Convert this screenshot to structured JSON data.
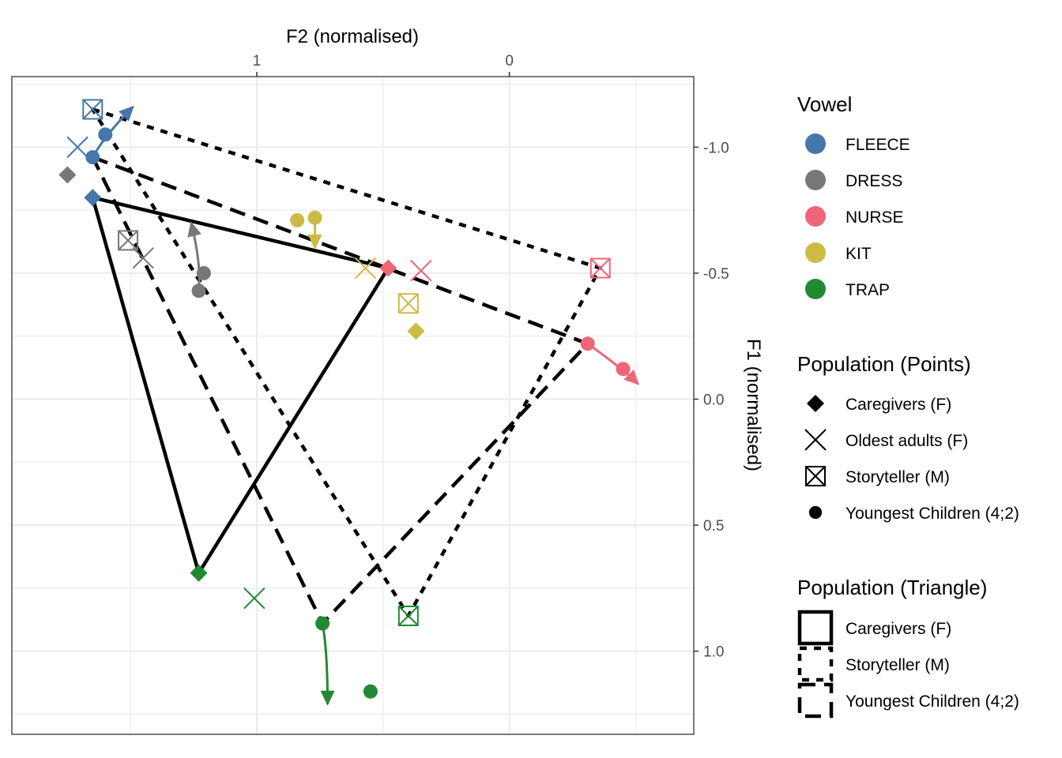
{
  "chart_data": {
    "type": "scatter",
    "title": "",
    "xlabel": "F2 (normalised)",
    "ylabel": "F1 (normalised)",
    "x_axis_position": "top",
    "y_axis_position": "right",
    "x_reversed": true,
    "y_reversed": true,
    "xlim": [
      1.97,
      -0.73
    ],
    "ylim": [
      -1.28,
      1.33
    ],
    "x_ticks": [
      {
        "value": 1,
        "label": "1"
      },
      {
        "value": 0,
        "label": "0"
      }
    ],
    "y_ticks": [
      {
        "value": -1.0,
        "label": "-1.0"
      },
      {
        "value": -0.5,
        "label": "-0.5"
      },
      {
        "value": 0.0,
        "label": "0.0"
      },
      {
        "value": 0.5,
        "label": "0.5"
      },
      {
        "value": 1.0,
        "label": "1.0"
      }
    ],
    "grid": true,
    "vowels": [
      {
        "name": "FLEECE",
        "color": "#4477AA"
      },
      {
        "name": "DRESS",
        "color": "#777777"
      },
      {
        "name": "NURSE",
        "color": "#EE6677"
      },
      {
        "name": "KIT",
        "color": "#CCBB44"
      },
      {
        "name": "TRAP",
        "color": "#228833"
      }
    ],
    "points": [
      {
        "population": "Caregivers (F)",
        "shape": "diamond",
        "vowel": "FLEECE",
        "f2": 1.65,
        "f1": -0.8
      },
      {
        "population": "Caregivers (F)",
        "shape": "diamond",
        "vowel": "DRESS",
        "f2": 1.75,
        "f1": -0.89
      },
      {
        "population": "Caregivers (F)",
        "shape": "diamond",
        "vowel": "NURSE",
        "f2": 0.48,
        "f1": -0.52
      },
      {
        "population": "Caregivers (F)",
        "shape": "diamond",
        "vowel": "KIT",
        "f2": 0.37,
        "f1": -0.27
      },
      {
        "population": "Caregivers (F)",
        "shape": "diamond",
        "vowel": "TRAP",
        "f2": 1.23,
        "f1": 0.69
      },
      {
        "population": "Oldest adults (F)",
        "shape": "x",
        "vowel": "FLEECE",
        "f2": 1.71,
        "f1": -1.0
      },
      {
        "population": "Oldest adults (F)",
        "shape": "x",
        "vowel": "DRESS",
        "f2": 1.45,
        "f1": -0.56
      },
      {
        "population": "Oldest adults (F)",
        "shape": "x",
        "vowel": "NURSE",
        "f2": 0.35,
        "f1": -0.51
      },
      {
        "population": "Oldest adults (F)",
        "shape": "x",
        "vowel": "KIT",
        "f2": 0.57,
        "f1": -0.52
      },
      {
        "population": "Oldest adults (F)",
        "shape": "x",
        "vowel": "TRAP",
        "f2": 1.01,
        "f1": 0.79
      },
      {
        "population": "Storyteller (M)",
        "shape": "boxx",
        "vowel": "FLEECE",
        "f2": 1.65,
        "f1": -1.15
      },
      {
        "population": "Storyteller (M)",
        "shape": "boxx",
        "vowel": "DRESS",
        "f2": 1.51,
        "f1": -0.63
      },
      {
        "population": "Storyteller (M)",
        "shape": "boxx",
        "vowel": "NURSE",
        "f2": -0.36,
        "f1": -0.52
      },
      {
        "population": "Storyteller (M)",
        "shape": "boxx",
        "vowel": "KIT",
        "f2": 0.4,
        "f1": -0.38
      },
      {
        "population": "Storyteller (M)",
        "shape": "boxx",
        "vowel": "TRAP",
        "f2": 0.4,
        "f1": 0.86
      },
      {
        "population": "Youngest Children (4;2)",
        "shape": "circle",
        "vowel": "FLEECE",
        "f2": 1.6,
        "f1": -1.05
      },
      {
        "population": "Youngest Children (4;2)",
        "shape": "circle",
        "vowel": "FLEECE",
        "f2": 1.65,
        "f1": -0.96
      },
      {
        "population": "Youngest Children (4;2)",
        "shape": "circle",
        "vowel": "DRESS",
        "f2": 1.21,
        "f1": -0.5
      },
      {
        "population": "Youngest Children (4;2)",
        "shape": "circle",
        "vowel": "DRESS",
        "f2": 1.23,
        "f1": -0.43
      },
      {
        "population": "Youngest Children (4;2)",
        "shape": "circle",
        "vowel": "NURSE",
        "f2": -0.31,
        "f1": -0.22
      },
      {
        "population": "Youngest Children (4;2)",
        "shape": "circle",
        "vowel": "NURSE",
        "f2": -0.45,
        "f1": -0.12
      },
      {
        "population": "Youngest Children (4;2)",
        "shape": "circle",
        "vowel": "KIT",
        "f2": 0.84,
        "f1": -0.71
      },
      {
        "population": "Youngest Children (4;2)",
        "shape": "circle",
        "vowel": "KIT",
        "f2": 0.77,
        "f1": -0.72
      },
      {
        "population": "Youngest Children (4;2)",
        "shape": "circle",
        "vowel": "TRAP",
        "f2": 0.74,
        "f1": 0.89
      },
      {
        "population": "Youngest Children (4;2)",
        "shape": "circle",
        "vowel": "TRAP",
        "f2": 0.55,
        "f1": 1.16
      }
    ],
    "trajectories": [
      {
        "vowel": "FLEECE",
        "from": [
          1.65,
          -0.96
        ],
        "via": [
          1.6,
          -1.05
        ],
        "to": [
          1.49,
          -1.16
        ]
      },
      {
        "vowel": "DRESS",
        "from": [
          1.23,
          -0.43
        ],
        "via": [
          1.22,
          -0.54
        ],
        "to": [
          1.26,
          -0.7
        ]
      },
      {
        "vowel": "NURSE",
        "from": [
          -0.31,
          -0.22
        ],
        "via": [
          -0.45,
          -0.12
        ],
        "to": [
          -0.51,
          -0.06
        ]
      },
      {
        "vowel": "KIT",
        "from": [
          0.77,
          -0.72
        ],
        "via": [
          0.77,
          -0.66
        ],
        "to": [
          0.77,
          -0.6
        ]
      },
      {
        "vowel": "TRAP",
        "from": [
          0.74,
          0.89
        ],
        "via": [
          0.72,
          1.0
        ],
        "to": [
          0.72,
          1.21
        ]
      }
    ],
    "triangles": [
      {
        "population": "Caregivers (F)",
        "linetype": "solid",
        "vertices": [
          [
            1.65,
            -0.8
          ],
          [
            0.48,
            -0.52
          ],
          [
            1.23,
            0.69
          ]
        ]
      },
      {
        "population": "Storyteller (M)",
        "linetype": "dotted",
        "vertices": [
          [
            1.65,
            -1.15
          ],
          [
            -0.36,
            -0.52
          ],
          [
            0.4,
            0.86
          ]
        ]
      },
      {
        "population": "Youngest Children (4;2)",
        "linetype": "dashed",
        "vertices": [
          [
            1.65,
            -0.96
          ],
          [
            -0.31,
            -0.22
          ],
          [
            0.74,
            0.89
          ]
        ]
      }
    ],
    "legends": [
      {
        "title": "Vowel",
        "type": "color",
        "position": "right",
        "entries": [
          "FLEECE",
          "DRESS",
          "NURSE",
          "KIT",
          "TRAP"
        ]
      },
      {
        "title": "Population (Points)",
        "type": "shape",
        "position": "right",
        "entries": [
          {
            "label": "Caregivers (F)",
            "shape": "diamond"
          },
          {
            "label": "Oldest adults (F)",
            "shape": "x"
          },
          {
            "label": "Storyteller (M)",
            "shape": "boxx"
          },
          {
            "label": "Youngest Children (4;2)",
            "shape": "circle"
          }
        ]
      },
      {
        "title": "Population (Triangle)",
        "type": "linetype",
        "position": "right",
        "entries": [
          {
            "label": "Caregivers (F)",
            "linetype": "solid"
          },
          {
            "label": "Storyteller (M)",
            "linetype": "dotted"
          },
          {
            "label": "Youngest Children (4;2)",
            "linetype": "dashed"
          }
        ]
      }
    ]
  }
}
